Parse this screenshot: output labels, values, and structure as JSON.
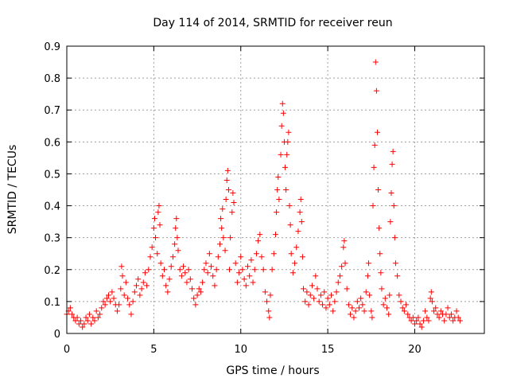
{
  "chart_data": {
    "type": "scatter",
    "title": "Day 114 of 2014, SRMTID for receiver reun",
    "xlabel": "GPS time / hours",
    "ylabel": "SRMTID / TECUs",
    "xlim": [
      0,
      24
    ],
    "ylim": [
      0,
      0.9
    ],
    "xticks": [
      0,
      5,
      10,
      15,
      20
    ],
    "xtick_labels": [
      "0",
      "5",
      "10",
      "15",
      "20"
    ],
    "yticks": [
      0,
      0.1,
      0.2,
      0.3,
      0.4,
      0.5,
      0.6,
      0.7,
      0.8,
      0.9
    ],
    "ytick_labels": [
      "0",
      "0.1",
      "0.2",
      "0.3",
      "0.4",
      "0.5",
      "0.6",
      "0.7",
      "0.8",
      "0.9"
    ],
    "grid": true,
    "marker": "+",
    "color": "#ff0000",
    "series": [
      {
        "name": "SRMTID",
        "points": [
          [
            0.0,
            0.06
          ],
          [
            0.1,
            0.07
          ],
          [
            0.2,
            0.08
          ],
          [
            0.3,
            0.06
          ],
          [
            0.4,
            0.05
          ],
          [
            0.5,
            0.04
          ],
          [
            0.6,
            0.05
          ],
          [
            0.7,
            0.03
          ],
          [
            0.8,
            0.04
          ],
          [
            0.9,
            0.02
          ],
          [
            1.0,
            0.03
          ],
          [
            1.1,
            0.05
          ],
          [
            1.2,
            0.04
          ],
          [
            1.3,
            0.06
          ],
          [
            1.4,
            0.03
          ],
          [
            1.5,
            0.05
          ],
          [
            1.6,
            0.04
          ],
          [
            1.7,
            0.07
          ],
          [
            1.8,
            0.05
          ],
          [
            1.9,
            0.06
          ],
          [
            2.0,
            0.08
          ],
          [
            2.1,
            0.1
          ],
          [
            2.2,
            0.09
          ],
          [
            2.3,
            0.11
          ],
          [
            2.4,
            0.12
          ],
          [
            2.5,
            0.1
          ],
          [
            2.6,
            0.13
          ],
          [
            2.7,
            0.11
          ],
          [
            2.8,
            0.09
          ],
          [
            2.9,
            0.07
          ],
          [
            3.0,
            0.09
          ],
          [
            3.1,
            0.14
          ],
          [
            3.15,
            0.21
          ],
          [
            3.2,
            0.18
          ],
          [
            3.3,
            0.12
          ],
          [
            3.4,
            0.16
          ],
          [
            3.5,
            0.11
          ],
          [
            3.6,
            0.09
          ],
          [
            3.7,
            0.06
          ],
          [
            3.8,
            0.1
          ],
          [
            3.9,
            0.13
          ],
          [
            4.0,
            0.15
          ],
          [
            4.1,
            0.17
          ],
          [
            4.2,
            0.12
          ],
          [
            4.3,
            0.14
          ],
          [
            4.4,
            0.16
          ],
          [
            4.5,
            0.19
          ],
          [
            4.6,
            0.15
          ],
          [
            4.7,
            0.2
          ],
          [
            4.8,
            0.24
          ],
          [
            4.9,
            0.27
          ],
          [
            5.0,
            0.33
          ],
          [
            5.05,
            0.36
          ],
          [
            5.1,
            0.3
          ],
          [
            5.2,
            0.25
          ],
          [
            5.25,
            0.38
          ],
          [
            5.3,
            0.4
          ],
          [
            5.35,
            0.34
          ],
          [
            5.4,
            0.22
          ],
          [
            5.5,
            0.18
          ],
          [
            5.6,
            0.2
          ],
          [
            5.7,
            0.15
          ],
          [
            5.8,
            0.13
          ],
          [
            5.9,
            0.17
          ],
          [
            6.0,
            0.21
          ],
          [
            6.1,
            0.24
          ],
          [
            6.2,
            0.28
          ],
          [
            6.25,
            0.33
          ],
          [
            6.3,
            0.36
          ],
          [
            6.35,
            0.3
          ],
          [
            6.4,
            0.26
          ],
          [
            6.5,
            0.2
          ],
          [
            6.6,
            0.18
          ],
          [
            6.7,
            0.21
          ],
          [
            6.8,
            0.19
          ],
          [
            6.9,
            0.16
          ],
          [
            7.0,
            0.2
          ],
          [
            7.1,
            0.17
          ],
          [
            7.2,
            0.14
          ],
          [
            7.3,
            0.11
          ],
          [
            7.4,
            0.09
          ],
          [
            7.5,
            0.12
          ],
          [
            7.6,
            0.14
          ],
          [
            7.7,
            0.13
          ],
          [
            7.8,
            0.16
          ],
          [
            7.9,
            0.2
          ],
          [
            8.0,
            0.22
          ],
          [
            8.1,
            0.19
          ],
          [
            8.2,
            0.25
          ],
          [
            8.3,
            0.21
          ],
          [
            8.4,
            0.18
          ],
          [
            8.5,
            0.15
          ],
          [
            8.6,
            0.2
          ],
          [
            8.7,
            0.24
          ],
          [
            8.8,
            0.28
          ],
          [
            8.85,
            0.36
          ],
          [
            8.9,
            0.33
          ],
          [
            8.95,
            0.39
          ],
          [
            9.0,
            0.3
          ],
          [
            9.1,
            0.26
          ],
          [
            9.15,
            0.42
          ],
          [
            9.2,
            0.48
          ],
          [
            9.25,
            0.51
          ],
          [
            9.3,
            0.45
          ],
          [
            9.35,
            0.2
          ],
          [
            9.4,
            0.3
          ],
          [
            9.5,
            0.38
          ],
          [
            9.55,
            0.44
          ],
          [
            9.6,
            0.41
          ],
          [
            9.7,
            0.22
          ],
          [
            9.8,
            0.16
          ],
          [
            9.9,
            0.19
          ],
          [
            10.0,
            0.24
          ],
          [
            10.1,
            0.2
          ],
          [
            10.2,
            0.17
          ],
          [
            10.3,
            0.15
          ],
          [
            10.4,
            0.21
          ],
          [
            10.5,
            0.18
          ],
          [
            10.6,
            0.23
          ],
          [
            10.7,
            0.16
          ],
          [
            10.8,
            0.2
          ],
          [
            10.9,
            0.25
          ],
          [
            11.0,
            0.29
          ],
          [
            11.1,
            0.31
          ],
          [
            11.2,
            0.24
          ],
          [
            11.3,
            0.2
          ],
          [
            11.4,
            0.13
          ],
          [
            11.5,
            0.1
          ],
          [
            11.6,
            0.07
          ],
          [
            11.65,
            0.05
          ],
          [
            11.7,
            0.12
          ],
          [
            11.8,
            0.2
          ],
          [
            11.9,
            0.25
          ],
          [
            12.0,
            0.31
          ],
          [
            12.05,
            0.38
          ],
          [
            12.1,
            0.45
          ],
          [
            12.15,
            0.49
          ],
          [
            12.2,
            0.42
          ],
          [
            12.3,
            0.56
          ],
          [
            12.35,
            0.65
          ],
          [
            12.4,
            0.72
          ],
          [
            12.45,
            0.69
          ],
          [
            12.5,
            0.6
          ],
          [
            12.55,
            0.52
          ],
          [
            12.6,
            0.45
          ],
          [
            12.65,
            0.56
          ],
          [
            12.7,
            0.6
          ],
          [
            12.75,
            0.63
          ],
          [
            12.8,
            0.4
          ],
          [
            12.85,
            0.34
          ],
          [
            12.9,
            0.25
          ],
          [
            13.0,
            0.19
          ],
          [
            13.1,
            0.22
          ],
          [
            13.2,
            0.27
          ],
          [
            13.3,
            0.32
          ],
          [
            13.4,
            0.38
          ],
          [
            13.45,
            0.42
          ],
          [
            13.5,
            0.35
          ],
          [
            13.55,
            0.24
          ],
          [
            13.6,
            0.14
          ],
          [
            13.7,
            0.1
          ],
          [
            13.8,
            0.13
          ],
          [
            13.9,
            0.09
          ],
          [
            14.0,
            0.12
          ],
          [
            14.1,
            0.15
          ],
          [
            14.2,
            0.11
          ],
          [
            14.3,
            0.18
          ],
          [
            14.4,
            0.14
          ],
          [
            14.5,
            0.1
          ],
          [
            14.6,
            0.12
          ],
          [
            14.7,
            0.09
          ],
          [
            14.8,
            0.13
          ],
          [
            14.9,
            0.08
          ],
          [
            15.0,
            0.11
          ],
          [
            15.1,
            0.09
          ],
          [
            15.2,
            0.12
          ],
          [
            15.3,
            0.07
          ],
          [
            15.4,
            0.1
          ],
          [
            15.5,
            0.13
          ],
          [
            15.6,
            0.16
          ],
          [
            15.7,
            0.18
          ],
          [
            15.8,
            0.21
          ],
          [
            15.9,
            0.27
          ],
          [
            15.95,
            0.29
          ],
          [
            16.0,
            0.22
          ],
          [
            16.1,
            0.14
          ],
          [
            16.2,
            0.09
          ],
          [
            16.3,
            0.06
          ],
          [
            16.4,
            0.08
          ],
          [
            16.5,
            0.05
          ],
          [
            16.6,
            0.07
          ],
          [
            16.7,
            0.1
          ],
          [
            16.8,
            0.08
          ],
          [
            16.9,
            0.11
          ],
          [
            17.0,
            0.09
          ],
          [
            17.1,
            0.07
          ],
          [
            17.2,
            0.13
          ],
          [
            17.3,
            0.18
          ],
          [
            17.35,
            0.22
          ],
          [
            17.4,
            0.12
          ],
          [
            17.5,
            0.07
          ],
          [
            17.55,
            0.05
          ],
          [
            17.6,
            0.4
          ],
          [
            17.65,
            0.52
          ],
          [
            17.7,
            0.59
          ],
          [
            17.75,
            0.85
          ],
          [
            17.8,
            0.76
          ],
          [
            17.85,
            0.63
          ],
          [
            17.9,
            0.45
          ],
          [
            17.95,
            0.33
          ],
          [
            18.0,
            0.25
          ],
          [
            18.05,
            0.19
          ],
          [
            18.1,
            0.14
          ],
          [
            18.2,
            0.09
          ],
          [
            18.3,
            0.11
          ],
          [
            18.4,
            0.08
          ],
          [
            18.5,
            0.06
          ],
          [
            18.55,
            0.12
          ],
          [
            18.6,
            0.35
          ],
          [
            18.65,
            0.44
          ],
          [
            18.7,
            0.53
          ],
          [
            18.75,
            0.57
          ],
          [
            18.8,
            0.4
          ],
          [
            18.85,
            0.3
          ],
          [
            18.9,
            0.22
          ],
          [
            19.0,
            0.18
          ],
          [
            19.1,
            0.12
          ],
          [
            19.2,
            0.1
          ],
          [
            19.3,
            0.08
          ],
          [
            19.4,
            0.07
          ],
          [
            19.5,
            0.09
          ],
          [
            19.6,
            0.06
          ],
          [
            19.7,
            0.05
          ],
          [
            19.8,
            0.04
          ],
          [
            19.9,
            0.05
          ],
          [
            20.0,
            0.03
          ],
          [
            20.1,
            0.04
          ],
          [
            20.2,
            0.05
          ],
          [
            20.3,
            0.03
          ],
          [
            20.4,
            0.02
          ],
          [
            20.5,
            0.04
          ],
          [
            20.6,
            0.07
          ],
          [
            20.7,
            0.05
          ],
          [
            20.8,
            0.04
          ],
          [
            20.9,
            0.11
          ],
          [
            20.95,
            0.13
          ],
          [
            21.0,
            0.1
          ],
          [
            21.1,
            0.07
          ],
          [
            21.2,
            0.08
          ],
          [
            21.3,
            0.06
          ],
          [
            21.4,
            0.05
          ],
          [
            21.5,
            0.07
          ],
          [
            21.6,
            0.06
          ],
          [
            21.7,
            0.04
          ],
          [
            21.8,
            0.06
          ],
          [
            21.9,
            0.08
          ],
          [
            22.0,
            0.05
          ],
          [
            22.1,
            0.06
          ],
          [
            22.2,
            0.04
          ],
          [
            22.3,
            0.05
          ],
          [
            22.4,
            0.07
          ],
          [
            22.5,
            0.05
          ],
          [
            22.6,
            0.04
          ]
        ]
      }
    ]
  }
}
